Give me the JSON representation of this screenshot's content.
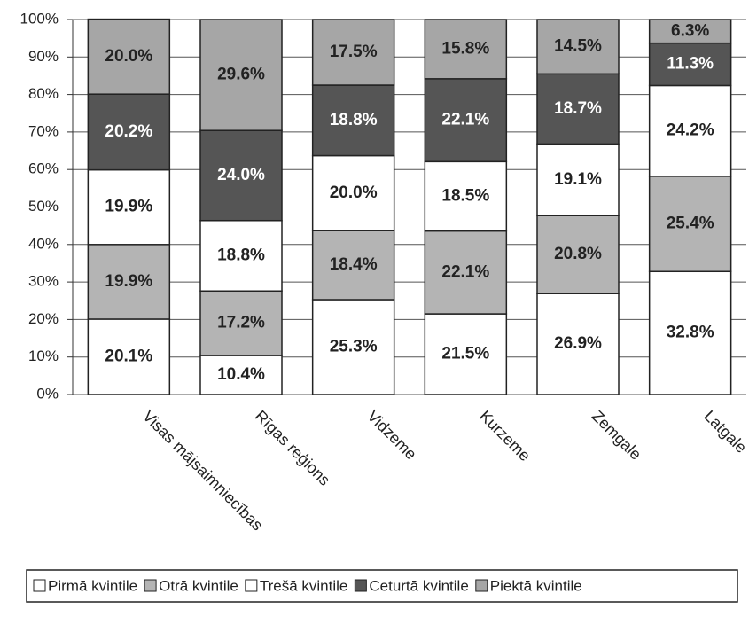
{
  "chart_data": {
    "type": "stacked_bar",
    "categories": [
      "Visas mājsaimniecības",
      "Rīgas reģions",
      "Vidzeme",
      "Kurzeme",
      "Zemgale",
      "Latgale"
    ],
    "series": [
      {
        "name": "Pirmā kvintile",
        "color": "#ffffff",
        "values": [
          20.1,
          10.4,
          25.3,
          21.5,
          26.9,
          32.8
        ],
        "value_labels": [
          "20.1%",
          "10.4%",
          "25.3%",
          "21.5%",
          "26.9%",
          "32.8%"
        ]
      },
      {
        "name": "Otrā kvintile",
        "color": "#b4b4b4",
        "values": [
          19.9,
          17.2,
          18.4,
          22.1,
          20.8,
          25.4
        ],
        "value_labels": [
          "19.9%",
          "17.2%",
          "18.4%",
          "22.1%",
          "20.8%",
          "25.4%"
        ]
      },
      {
        "name": "Trešā kvintile",
        "color": "#ffffff",
        "values": [
          19.9,
          18.8,
          20.0,
          18.5,
          19.1,
          24.2
        ],
        "value_labels": [
          "19.9%",
          "18.8%",
          "20.0%",
          "18.5%",
          "19.1%",
          "24.2%"
        ]
      },
      {
        "name": "Ceturtā kvintile",
        "color": "#555555",
        "values": [
          20.2,
          24.0,
          18.8,
          22.1,
          18.7,
          11.3
        ],
        "value_labels": [
          "20.2%",
          "24.0%",
          "18.8%",
          "22.1%",
          "18.7%",
          "11.3%"
        ]
      },
      {
        "name": "Piektā kvintile",
        "color": "#a6a6a6",
        "values": [
          20.0,
          29.6,
          17.5,
          15.8,
          14.5,
          6.3
        ],
        "value_labels": [
          "20.0%",
          "29.6%",
          "17.5%",
          "15.8%",
          "14.5%",
          "6.3%"
        ]
      }
    ],
    "ylim": [
      0,
      100
    ],
    "yticks": [
      {
        "value": 0,
        "label": "0%"
      },
      {
        "value": 10,
        "label": "10%"
      },
      {
        "value": 20,
        "label": "20%"
      },
      {
        "value": 30,
        "label": "30%"
      },
      {
        "value": 40,
        "label": "40%"
      },
      {
        "value": 50,
        "label": "50%"
      },
      {
        "value": 60,
        "label": "60%"
      },
      {
        "value": 70,
        "label": "70%"
      },
      {
        "value": 80,
        "label": "80%"
      },
      {
        "value": 90,
        "label": "90%"
      },
      {
        "value": 100,
        "label": "100%"
      }
    ],
    "grid": true,
    "legend": "bottom"
  }
}
